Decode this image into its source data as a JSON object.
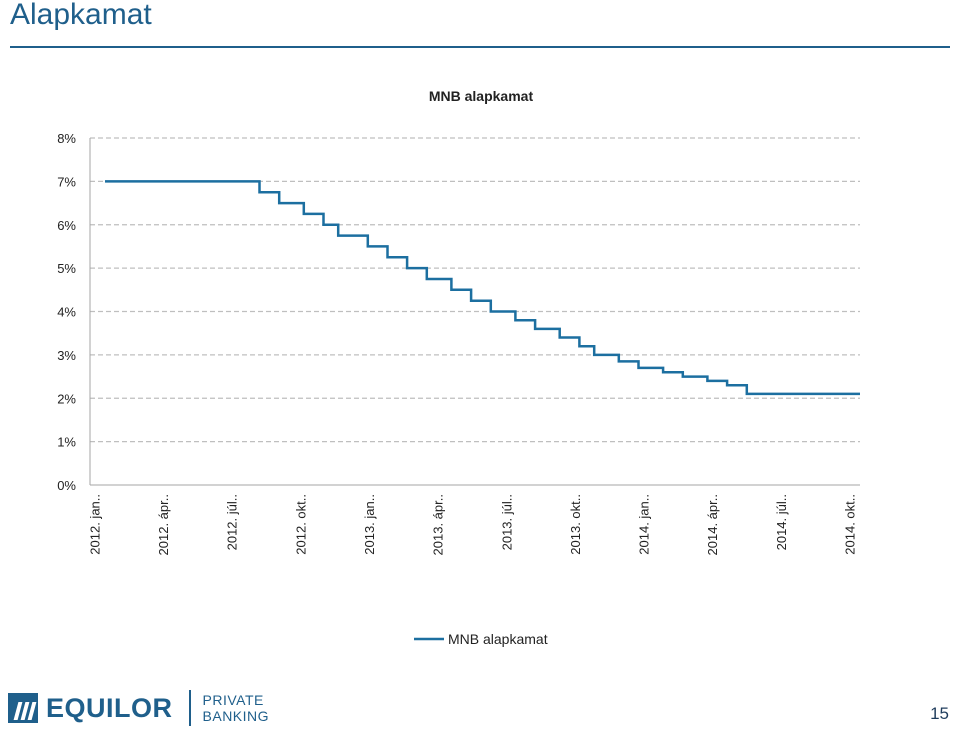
{
  "page": {
    "title": "Alapkamat",
    "page_number": "15"
  },
  "logo": {
    "name": "EQUILOR",
    "sub_line1": "PRIVATE",
    "sub_line2": "BANKING"
  },
  "colors": {
    "accent": "#1f5f8b",
    "series_line": "#1c6fa0",
    "grid": "#bfbfbf"
  },
  "chart_data": {
    "type": "line",
    "title": "MNB alapkamat",
    "step": true,
    "ylim": [
      0,
      8
    ],
    "yticks": [
      "0%",
      "1%",
      "2%",
      "3%",
      "4%",
      "5%",
      "6%",
      "7%",
      "8%"
    ],
    "xlim": [
      "2012-01",
      "2014-12"
    ],
    "xticks": [
      "2012. jan..",
      "2012. ápr..",
      "2012. júl..",
      "2012. okt..",
      "2013. jan..",
      "2013. ápr..",
      "2013. júl..",
      "2013. okt..",
      "2014. jan..",
      "2014. ápr..",
      "2014. júl..",
      "2014. okt.."
    ],
    "grid": true,
    "legend_position": "bottom",
    "series": [
      {
        "name": "MNB alapkamat",
        "x": [
          "2012-01-01",
          "2012-08-29",
          "2012-09-26",
          "2012-10-31",
          "2012-11-28",
          "2012-12-19",
          "2013-01-30",
          "2013-02-27",
          "2013-03-27",
          "2013-04-24",
          "2013-05-29",
          "2013-06-26",
          "2013-07-24",
          "2013-08-28",
          "2013-09-25",
          "2013-10-30",
          "2013-11-27",
          "2013-12-18",
          "2014-01-22",
          "2014-02-19",
          "2014-03-26",
          "2014-04-23",
          "2014-05-28",
          "2014-06-25",
          "2014-07-23",
          "2014-12-31"
        ],
        "y": [
          7.0,
          6.75,
          6.5,
          6.25,
          6.0,
          5.75,
          5.5,
          5.25,
          5.0,
          4.75,
          4.5,
          4.25,
          4.0,
          3.8,
          3.6,
          3.4,
          3.2,
          3.0,
          2.85,
          2.7,
          2.6,
          2.5,
          2.4,
          2.3,
          2.1,
          2.1
        ]
      }
    ]
  }
}
